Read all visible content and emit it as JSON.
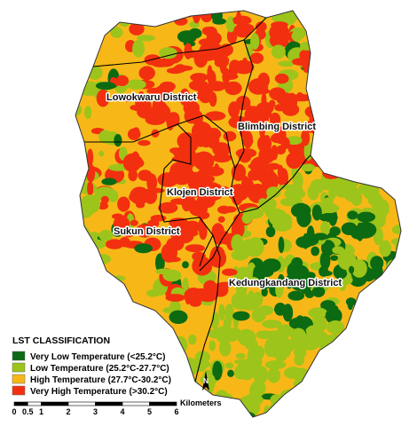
{
  "districts": [
    {
      "label": "Lowokwaru District"
    },
    {
      "label": "Blimbing District"
    },
    {
      "label": "Klojen District"
    },
    {
      "label": "Sukun District"
    },
    {
      "label": "Kedungkandang District"
    }
  ],
  "legend": {
    "title": "LST CLASSIFICATION",
    "items": [
      {
        "label": "Very Low Temperature (<25.2°C)",
        "color": "#0b6a12"
      },
      {
        "label": "Low Temperature (25.2°C-27.7°C)",
        "color": "#9dc41a"
      },
      {
        "label": "High Temperature (27.7°C-30.2°C)",
        "color": "#f7b817"
      },
      {
        "label": "Very High Temperature (>30.2°C)",
        "color": "#f2300f"
      }
    ]
  },
  "north": "N",
  "scale_bar": {
    "ticks": [
      0,
      0.5,
      1,
      2,
      3,
      4,
      5,
      6
    ],
    "unit": "Kilometers"
  }
}
